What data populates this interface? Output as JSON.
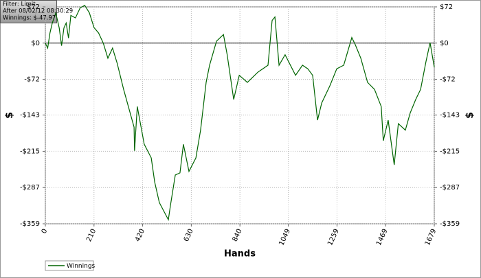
{
  "chart_data": {
    "type": "line",
    "annotations": [
      "Filter: Limit",
      "After 08/02/12 08:30:29",
      "Winnings: $-47.97"
    ],
    "x_label": "Hands",
    "y_label": "$",
    "x": [
      0,
      10,
      20,
      30,
      45,
      60,
      70,
      80,
      90,
      100,
      110,
      130,
      150,
      170,
      190,
      210,
      230,
      250,
      270,
      290,
      310,
      338,
      383,
      385,
      397,
      427,
      457,
      472,
      492,
      531,
      540,
      561,
      581,
      596,
      620,
      650,
      670,
      694,
      709,
      739,
      769,
      785,
      813,
      837,
      872,
      917,
      961,
      979,
      991,
      1009,
      1035,
      1080,
      1110,
      1133,
      1154,
      1175,
      1193,
      1228,
      1258,
      1288,
      1323,
      1338,
      1362,
      1391,
      1421,
      1450,
      1459,
      1480,
      1506,
      1524,
      1554,
      1575,
      1599,
      1620,
      1643,
      1661,
      1679
    ],
    "series": [
      {
        "name": "Winnings",
        "color": "#006400",
        "values": [
          0,
          -10,
          20,
          40,
          60,
          30,
          -5,
          30,
          40,
          10,
          55,
          50,
          70,
          75,
          60,
          31,
          20,
          0,
          -30,
          -10,
          -40,
          -92,
          -167,
          -214,
          -126,
          -201,
          -228,
          -276,
          -317,
          -351,
          -323,
          -262,
          -258,
          -201,
          -255,
          -228,
          -173,
          -78,
          -44,
          4,
          17,
          -23,
          -112,
          -64,
          -78,
          -58,
          -44,
          45,
          52,
          -44,
          -23,
          -64,
          -44,
          -51,
          -64,
          -153,
          -119,
          -85,
          -51,
          -44,
          11,
          -3,
          -30,
          -78,
          -92,
          -126,
          -194,
          -153,
          -242,
          -160,
          -173,
          -139,
          -112,
          -92,
          -37,
          1,
          -47.97
        ]
      }
    ],
    "xlim": [
      0,
      1679
    ],
    "xticks": [
      0,
      210,
      420,
      630,
      840,
      1049,
      1259,
      1469,
      1679
    ],
    "ylim": [
      -359,
      72
    ],
    "yticks": [
      {
        "value": 72,
        "label": "$72"
      },
      {
        "value": 0,
        "label": "$0"
      },
      {
        "value": -72,
        "label": "-$72"
      },
      {
        "value": -143,
        "label": "-$143"
      },
      {
        "value": -215,
        "label": "-$215"
      },
      {
        "value": -287,
        "label": "-$287"
      },
      {
        "value": -359,
        "label": "-$359"
      }
    ],
    "grid": true,
    "legend": "bottom-left"
  }
}
